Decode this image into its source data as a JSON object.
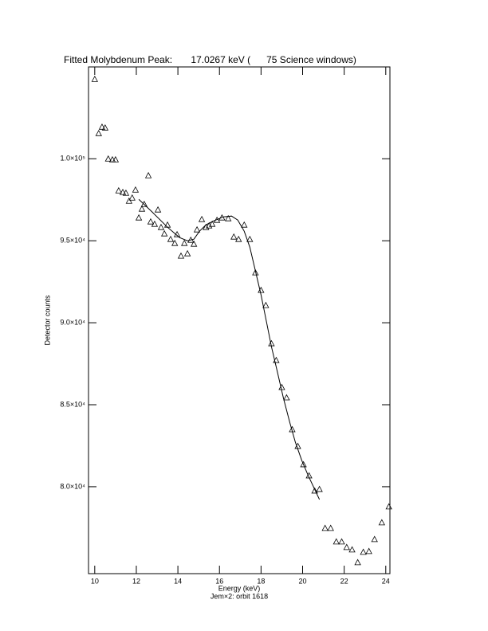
{
  "chart_data": {
    "type": "scatter",
    "title": "Fitted Molybdenum Peak:       17.0267 keV (      75 Science windows)",
    "xlabel": "Energy (keV)",
    "ylabel": "Detector counts",
    "subtitle": "Jem×2: orbit 1618",
    "xlim": [
      9.7,
      24.2
    ],
    "ylim": [
      74700,
      105600
    ],
    "xticks": [
      10,
      12,
      14,
      16,
      18,
      20,
      22,
      24
    ],
    "yticks": [
      {
        "value": 80000,
        "label": "8.0×10⁴"
      },
      {
        "value": 85000,
        "label": "8.5×10⁴"
      },
      {
        "value": 90000,
        "label": "9.0×10⁴"
      },
      {
        "value": 95000,
        "label": "9.5×10⁴"
      },
      {
        "value": 100000,
        "label": "1.0×10⁵"
      }
    ],
    "color": "#000000",
    "series": [
      {
        "marker": "triangle",
        "x": [
          10.0,
          10.19,
          10.35,
          10.5,
          10.65,
          10.85,
          11.0,
          11.15,
          11.35,
          11.5,
          11.65,
          11.8,
          11.96,
          12.12,
          12.27,
          12.38,
          12.58,
          12.69,
          12.88,
          13.04,
          13.19,
          13.35,
          13.5,
          13.65,
          13.85,
          13.96,
          14.15,
          14.31,
          14.46,
          14.62,
          14.77,
          14.92,
          15.15,
          15.35,
          15.5,
          15.65,
          15.88,
          16.12,
          16.42,
          16.69,
          16.92,
          17.19,
          17.46,
          17.73,
          18.0,
          18.23,
          18.5,
          18.73,
          19.0,
          19.23,
          19.5,
          19.77,
          20.04,
          20.31,
          20.58,
          20.81,
          21.08,
          21.35,
          21.62,
          21.88,
          22.12,
          22.38,
          22.65,
          22.92,
          23.19,
          23.46,
          23.81,
          24.15
        ],
        "values": [
          104854,
          101553,
          101942,
          101893,
          100000,
          99951,
          99951,
          98058,
          97961,
          97913,
          97427,
          97621,
          98107,
          96408,
          96942,
          97233,
          98981,
          96165,
          96019,
          96893,
          95825,
          95437,
          95971,
          95097,
          94854,
          95388,
          94078,
          94854,
          94223,
          95049,
          94806,
          95680,
          96311,
          95825,
          95922,
          96019,
          96262,
          96408,
          96359,
          95243,
          95097,
          95971,
          95097,
          93058,
          91990,
          91068,
          88738,
          87718,
          86068,
          85437,
          83495,
          82476,
          81359,
          80680,
          79757,
          79854,
          77476,
          77476,
          76650,
          76650,
          76311,
          76165,
          75388,
          76019,
          76068,
          76796,
          77816,
          78786
        ]
      },
      {
        "marker": "line",
        "x": [
          12.12,
          12.73,
          13.5,
          14.08,
          14.46,
          14.77,
          15.04,
          15.35,
          15.73,
          16.19,
          16.58,
          16.88,
          17.19,
          17.46,
          17.73,
          18.0,
          18.27,
          18.5,
          18.77,
          19.08,
          19.38,
          19.65,
          19.96,
          20.27,
          20.54,
          20.81
        ],
        "values": [
          97524,
          96796,
          95825,
          95194,
          95000,
          95097,
          95583,
          95971,
          96214,
          96456,
          96505,
          96262,
          95583,
          94612,
          93155,
          91699,
          90000,
          88544,
          87087,
          85388,
          83932,
          82718,
          81602,
          80680,
          79951,
          79223
        ]
      }
    ]
  }
}
